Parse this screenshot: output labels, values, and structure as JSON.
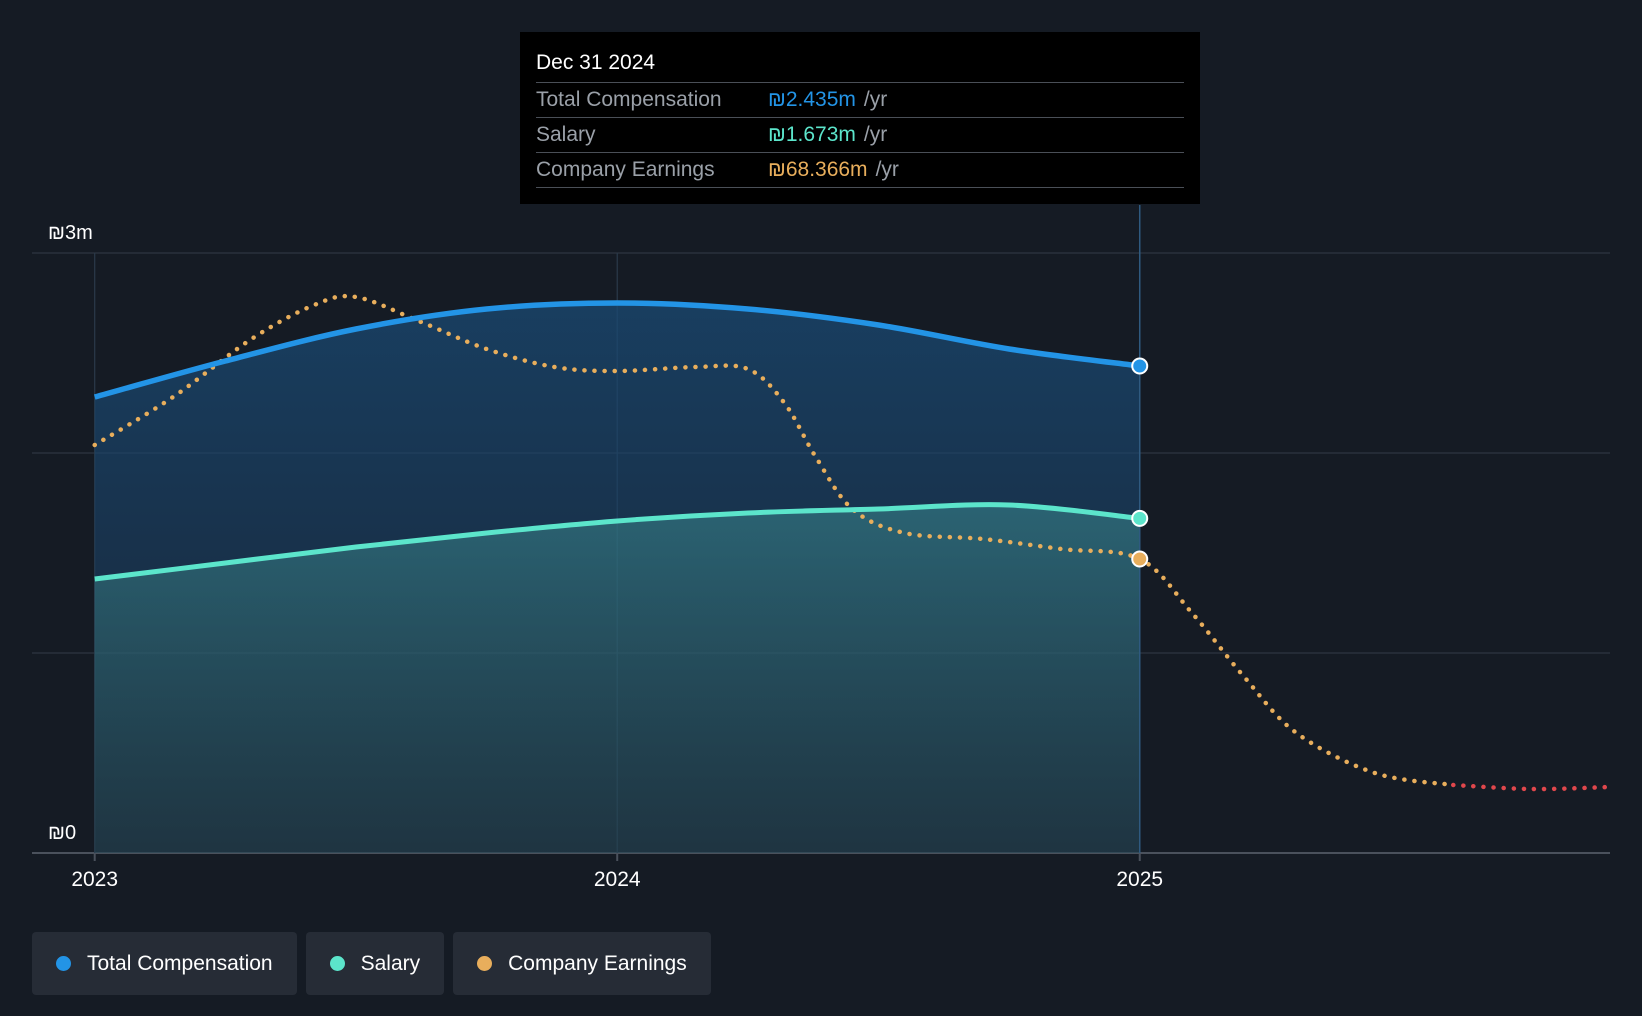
{
  "chart_data": {
    "type": "line",
    "x": [
      2023.0,
      2023.25,
      2023.5,
      2023.75,
      2024.0,
      2024.25,
      2024.5,
      2024.75,
      2025.0
    ],
    "series": [
      {
        "name": "Total Compensation",
        "color": "#2394e6",
        "values": [
          2.28,
          2.46,
          2.62,
          2.72,
          2.75,
          2.72,
          2.64,
          2.52,
          2.435
        ]
      },
      {
        "name": "Salary",
        "color": "#5ce5cb",
        "values": [
          1.37,
          1.45,
          1.53,
          1.6,
          1.66,
          1.7,
          1.72,
          1.74,
          1.673
        ]
      }
    ],
    "earnings_trend": {
      "name": "Company Earnings",
      "color": "#e8ae5c",
      "forecast_color": "#e0474c",
      "x": [
        2023.0,
        2023.15,
        2023.3,
        2023.42,
        2023.5,
        2023.62,
        2023.75,
        2023.88,
        2024.0,
        2024.15,
        2024.25,
        2024.32,
        2024.38,
        2024.45,
        2024.55,
        2024.7,
        2024.85,
        2025.0,
        2025.1,
        2025.2,
        2025.3,
        2025.45,
        2025.6,
        2025.75,
        2025.9
      ],
      "values": [
        2.04,
        2.28,
        2.57,
        2.74,
        2.78,
        2.66,
        2.52,
        2.43,
        2.41,
        2.43,
        2.42,
        2.25,
        1.98,
        1.72,
        1.6,
        1.57,
        1.52,
        1.47,
        1.2,
        0.88,
        0.6,
        0.4,
        0.34,
        0.32,
        0.33
      ],
      "forecast_from": 2025.6
    },
    "highlight_x": 2025.0,
    "title": "",
    "xlabel": "",
    "ylabel": "",
    "xlim": [
      2022.88,
      2025.9
    ],
    "ylim": [
      0,
      3
    ],
    "y_ticks": [
      0,
      1,
      2,
      3
    ],
    "y_tick_labels": [
      {
        "value": 0,
        "label": "₪0"
      },
      {
        "value": 3,
        "label": "₪3m"
      }
    ],
    "x_tick_labels": [
      {
        "value": 2023,
        "label": "2023"
      },
      {
        "value": 2024,
        "label": "2024"
      },
      {
        "value": 2025,
        "label": "2025"
      }
    ],
    "grid": true
  },
  "tooltip": {
    "date": "Dec 31 2024",
    "rows": [
      {
        "label": "Total Compensation",
        "value": "₪2.435m",
        "unit": "/yr",
        "color": "#2394e6"
      },
      {
        "label": "Salary",
        "value": "₪1.673m",
        "unit": "/yr",
        "color": "#5ce5cb"
      },
      {
        "label": "Company Earnings",
        "value": "₪68.366m",
        "unit": "/yr",
        "color": "#e8ae5c"
      }
    ]
  },
  "legend": [
    {
      "label": "Total Compensation",
      "color": "#2394e6"
    },
    {
      "label": "Salary",
      "color": "#5ce5cb"
    },
    {
      "label": "Company Earnings",
      "color": "#e8ae5c"
    }
  ]
}
